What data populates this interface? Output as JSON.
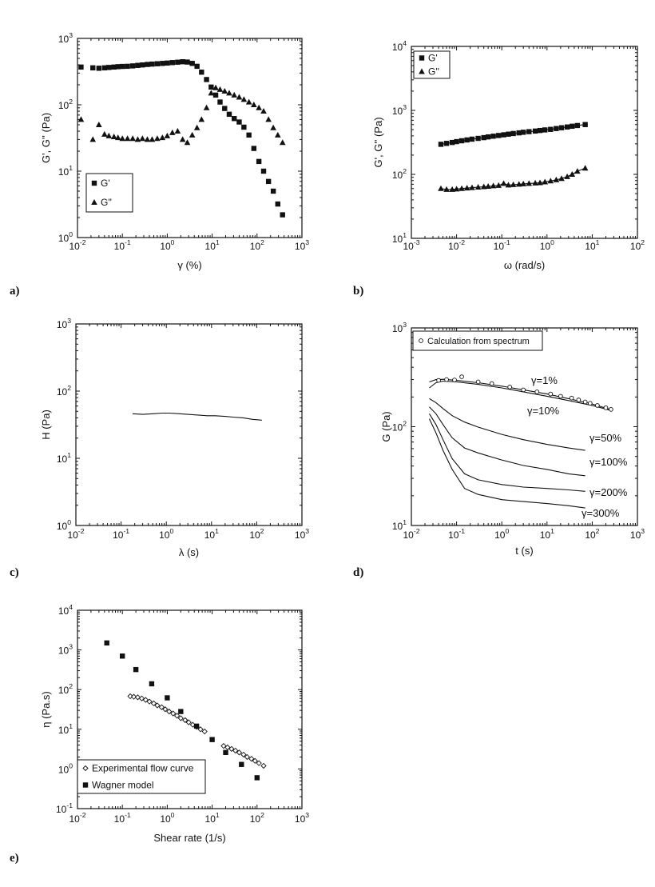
{
  "chart_data": [
    {
      "panel": "a)",
      "type": "scatter",
      "xlabel": "γ (%)",
      "ylabel": "G', G'' (Pa)",
      "xscale": "log",
      "yscale": "log",
      "xlim": [
        0.01,
        1000
      ],
      "ylim": [
        1,
        1000
      ],
      "xticks": [
        "10-2",
        "10-1",
        "100",
        "101",
        "102",
        "103"
      ],
      "yticks": [
        "100",
        "101",
        "102",
        "103"
      ],
      "legend": {
        "placement": "bottom-left",
        "entries": [
          "G'",
          "G''"
        ]
      },
      "series": [
        {
          "name": "G'",
          "marker": "square",
          "x": [
            0.012,
            0.022,
            0.03,
            0.04,
            0.05,
            0.065,
            0.08,
            0.1,
            0.13,
            0.17,
            0.22,
            0.28,
            0.36,
            0.46,
            0.6,
            0.78,
            1.0,
            1.3,
            1.7,
            2.2,
            2.8,
            3.6,
            4.6,
            5.8,
            7.5,
            9.5,
            12,
            15,
            19,
            24,
            31,
            40,
            51,
            66,
            85,
            110,
            140,
            180,
            230,
            290,
            370
          ],
          "y": [
            370,
            360,
            355,
            360,
            365,
            370,
            375,
            378,
            380,
            385,
            392,
            398,
            405,
            410,
            415,
            420,
            425,
            432,
            438,
            445,
            440,
            420,
            380,
            310,
            240,
            185,
            140,
            110,
            88,
            72,
            62,
            55,
            46,
            35,
            22,
            14,
            10,
            7,
            5,
            3.2,
            2.2
          ]
        },
        {
          "name": "G''",
          "marker": "triangle",
          "x": [
            0.012,
            0.022,
            0.03,
            0.04,
            0.05,
            0.065,
            0.08,
            0.1,
            0.13,
            0.17,
            0.22,
            0.28,
            0.36,
            0.46,
            0.6,
            0.78,
            1.0,
            1.3,
            1.7,
            2.2,
            2.8,
            3.6,
            4.6,
            5.8,
            7.5,
            9.5,
            12,
            15,
            19,
            24,
            31,
            40,
            51,
            66,
            85,
            110,
            140,
            180,
            230,
            290,
            370
          ],
          "y": [
            60,
            30,
            50,
            36,
            34,
            33,
            32,
            31,
            31,
            31,
            30,
            31,
            30,
            30,
            31,
            32,
            34,
            38,
            40,
            30,
            27,
            35,
            45,
            60,
            90,
            150,
            180,
            170,
            160,
            150,
            140,
            130,
            120,
            110,
            100,
            90,
            80,
            60,
            45,
            35,
            27
          ]
        }
      ]
    },
    {
      "panel": "b)",
      "type": "scatter",
      "xlabel": "ω (rad/s)",
      "ylabel": "G', G'' (Pa)",
      "xscale": "log",
      "yscale": "log",
      "xlim": [
        0.001,
        100
      ],
      "ylim": [
        10,
        10000
      ],
      "xticks": [
        "10-3",
        "10-2",
        "10-1",
        "100",
        "101",
        "102"
      ],
      "yticks": [
        "101",
        "102",
        "103",
        "104"
      ],
      "legend": {
        "placement": "top-left",
        "entries": [
          "G'",
          "G''"
        ]
      },
      "series": [
        {
          "name": "G'",
          "marker": "square",
          "x": [
            0.0045,
            0.006,
            0.008,
            0.01,
            0.013,
            0.017,
            0.022,
            0.03,
            0.04,
            0.05,
            0.065,
            0.085,
            0.11,
            0.14,
            0.18,
            0.24,
            0.3,
            0.4,
            0.55,
            0.7,
            0.9,
            1.2,
            1.6,
            2.1,
            2.8,
            3.6,
            4.7,
            7.0
          ],
          "y": [
            295,
            305,
            315,
            325,
            335,
            345,
            355,
            365,
            375,
            385,
            395,
            405,
            415,
            425,
            435,
            445,
            455,
            465,
            475,
            485,
            495,
            505,
            520,
            535,
            550,
            565,
            580,
            600
          ]
        },
        {
          "name": "G''",
          "marker": "triangle",
          "x": [
            0.0045,
            0.006,
            0.008,
            0.01,
            0.013,
            0.017,
            0.022,
            0.03,
            0.04,
            0.05,
            0.065,
            0.085,
            0.11,
            0.14,
            0.18,
            0.24,
            0.3,
            0.4,
            0.55,
            0.7,
            0.9,
            1.2,
            1.6,
            2.1,
            2.8,
            3.6,
            4.7,
            7.0
          ],
          "y": [
            60,
            58,
            58,
            59,
            60,
            61,
            62,
            63,
            64,
            65,
            66,
            67,
            72,
            68,
            69,
            70,
            71,
            72,
            73,
            74,
            76,
            79,
            82,
            86,
            92,
            100,
            112,
            125
          ]
        }
      ]
    },
    {
      "panel": "c)",
      "type": "line",
      "xlabel": "λ (s)",
      "ylabel": "H (Pa)",
      "xscale": "log",
      "yscale": "log",
      "xlim": [
        0.01,
        1000
      ],
      "ylim": [
        1,
        1000
      ],
      "xticks": [
        "10-2",
        "10-1",
        "100",
        "101",
        "102",
        "103"
      ],
      "yticks": [
        "100",
        "101",
        "102",
        "103"
      ],
      "series": [
        {
          "marker": "none",
          "x": [
            0.18,
            0.3,
            0.5,
            0.8,
            1.2,
            2,
            3,
            5,
            8,
            12,
            20,
            30,
            50,
            80,
            130
          ],
          "y": [
            46,
            45,
            46,
            47,
            47,
            46,
            45,
            44,
            43,
            43,
            42,
            41,
            40,
            38,
            37
          ]
        }
      ]
    },
    {
      "panel": "d)",
      "type": "line",
      "xlabel": "t (s)",
      "ylabel": "G (Pa)",
      "xscale": "log",
      "yscale": "log",
      "xlim": [
        0.01,
        1000
      ],
      "ylim": [
        10,
        2000
      ],
      "xticks": [
        "10-2",
        "10-1",
        "100",
        "101",
        "102",
        "103"
      ],
      "yticks": [
        "101",
        "102",
        "103"
      ],
      "legend": {
        "placement": "top-left",
        "entries": [
          "Calculation from spectrum"
        ]
      },
      "annotations": [
        "γ=1%",
        "γ=10%",
        "γ=50%",
        "γ=100%",
        "γ=200%",
        "γ=300%"
      ],
      "series": [
        {
          "label": "γ=1%",
          "marker": "none",
          "x": [
            0.025,
            0.035,
            0.05,
            0.1,
            0.3,
            1,
            3,
            10,
            30,
            100,
            250
          ],
          "y": [
            470,
            500,
            505,
            490,
            460,
            420,
            380,
            340,
            300,
            260,
            225
          ]
        },
        {
          "label": "γ=10%",
          "marker": "none",
          "x": [
            0.025,
            0.035,
            0.05,
            0.1,
            0.3,
            1,
            3,
            10,
            30,
            100,
            250
          ],
          "y": [
            400,
            460,
            480,
            470,
            440,
            400,
            360,
            320,
            285,
            250,
            220
          ]
        },
        {
          "label": "γ=50%",
          "marker": "none",
          "x": [
            0.025,
            0.035,
            0.05,
            0.08,
            0.15,
            0.3,
            1,
            3,
            10,
            30,
            70
          ],
          "y": [
            300,
            270,
            230,
            190,
            160,
            140,
            115,
            100,
            88,
            80,
            75
          ]
        },
        {
          "label": "γ=100%",
          "marker": "none",
          "x": [
            0.025,
            0.035,
            0.05,
            0.08,
            0.15,
            0.3,
            1,
            3,
            10,
            30,
            70
          ],
          "y": [
            240,
            200,
            150,
            105,
            80,
            70,
            58,
            50,
            45,
            40,
            38
          ]
        },
        {
          "label": "γ=200%",
          "marker": "none",
          "x": [
            0.025,
            0.035,
            0.05,
            0.08,
            0.15,
            0.3,
            1,
            3,
            10,
            30,
            70
          ],
          "y": [
            200,
            150,
            100,
            60,
            40,
            34,
            30,
            28,
            27,
            26,
            25
          ]
        },
        {
          "label": "γ=300%",
          "marker": "none",
          "x": [
            0.025,
            0.035,
            0.05,
            0.08,
            0.15,
            0.3,
            1,
            3,
            10,
            30,
            70
          ],
          "y": [
            175,
            120,
            75,
            45,
            27,
            23,
            20,
            19,
            18,
            17,
            16
          ]
        },
        {
          "name": "Calculation from spectrum",
          "marker": "circle",
          "x": [
            0.04,
            0.06,
            0.09,
            0.13,
            0.3,
            0.6,
            1.5,
            3,
            6,
            12,
            20,
            35,
            50,
            70,
            90,
            130,
            200,
            260
          ],
          "y": [
            490,
            500,
            495,
            540,
            470,
            450,
            410,
            380,
            360,
            340,
            320,
            305,
            290,
            275,
            265,
            250,
            235,
            225
          ]
        }
      ]
    },
    {
      "panel": "e)",
      "type": "scatter",
      "xlabel": "Shear rate (1/s)",
      "ylabel": "η (Pa.s)",
      "xscale": "log",
      "yscale": "log",
      "xlim": [
        0.01,
        1000
      ],
      "ylim": [
        0.1,
        10000
      ],
      "xticks": [
        "10-2",
        "10-1",
        "100",
        "101",
        "102",
        "103"
      ],
      "yticks": [
        "10-1",
        "100",
        "101",
        "102",
        "103",
        "104"
      ],
      "legend": {
        "placement": "bottom-left",
        "entries": [
          "Experimental flow curve",
          "Wagner model"
        ]
      },
      "series": [
        {
          "name": "Experimental flow curve",
          "marker": "open-diamond",
          "x": [
            0.15,
            0.18,
            0.22,
            0.27,
            0.33,
            0.4,
            0.5,
            0.6,
            0.75,
            0.9,
            1.1,
            1.35,
            1.65,
            2,
            2.5,
            3,
            3.7,
            4.5,
            5.5,
            6.8,
            18,
            22,
            27,
            33,
            40,
            50,
            60,
            75,
            90,
            110,
            140
          ],
          "y": [
            68,
            66,
            64,
            60,
            55,
            50,
            45,
            40,
            36,
            32,
            28,
            25,
            22,
            19,
            17,
            15,
            13,
            11.5,
            10,
            8.8,
            3.8,
            3.5,
            3.2,
            2.9,
            2.6,
            2.3,
            2.0,
            1.8,
            1.6,
            1.4,
            1.2
          ]
        },
        {
          "name": "Wagner model",
          "marker": "square",
          "x": [
            0.045,
            0.1,
            0.2,
            0.45,
            1,
            2,
            4.5,
            10,
            20,
            45,
            100
          ],
          "y": [
            1500,
            700,
            320,
            140,
            62,
            28,
            12,
            5.5,
            2.6,
            1.3,
            0.6
          ]
        }
      ]
    }
  ]
}
